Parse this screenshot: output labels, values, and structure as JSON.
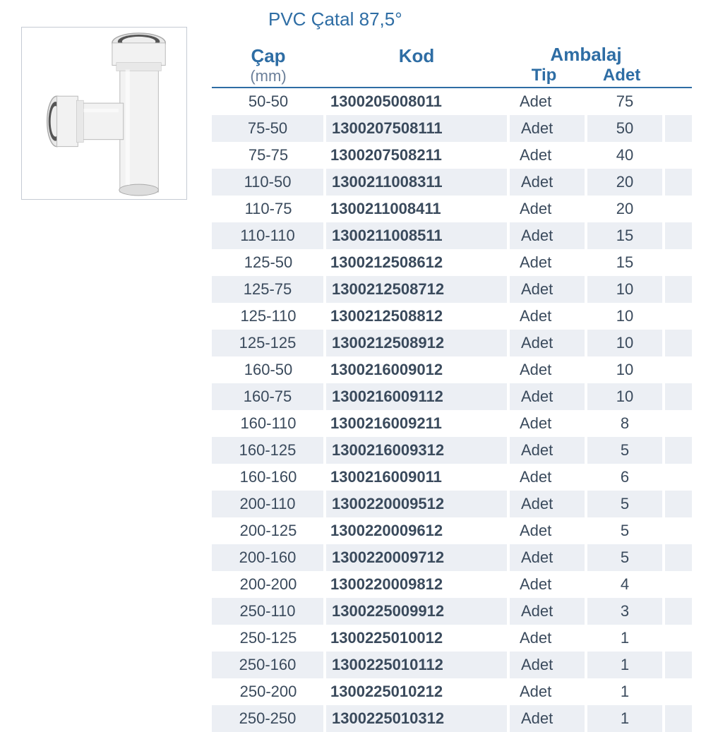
{
  "title": "PVC Çatal 87,5°",
  "headers": {
    "cap": "Çap",
    "cap_unit": "(mm)",
    "kod": "Kod",
    "ambalaj": "Ambalaj",
    "tip": "Tip",
    "adet": "Adet"
  },
  "colors": {
    "header_blue": "#2e6da4",
    "sub_gray": "#6b7f99",
    "text": "#3a4a5c",
    "row_alt": "#eceff4",
    "border_gray": "#c5cbd4"
  },
  "font_sizes": {
    "title": 26,
    "header_main": 26,
    "header_sub": 22,
    "cell": 22
  },
  "columns": [
    "cap",
    "kod",
    "tip",
    "adet"
  ],
  "column_widths": {
    "cap": 160,
    "kod": 260,
    "tip": 110,
    "adet": 110,
    "extra": 40
  },
  "rows": [
    {
      "cap": "50-50",
      "kod": "1300205008011",
      "tip": "Adet",
      "adet": "75"
    },
    {
      "cap": "75-50",
      "kod": "1300207508111",
      "tip": "Adet",
      "adet": "50"
    },
    {
      "cap": "75-75",
      "kod": "1300207508211",
      "tip": "Adet",
      "adet": "40"
    },
    {
      "cap": "110-50",
      "kod": "1300211008311",
      "tip": "Adet",
      "adet": "20"
    },
    {
      "cap": "110-75",
      "kod": "1300211008411",
      "tip": "Adet",
      "adet": "20"
    },
    {
      "cap": "110-110",
      "kod": "1300211008511",
      "tip": "Adet",
      "adet": "15"
    },
    {
      "cap": "125-50",
      "kod": "1300212508612",
      "tip": "Adet",
      "adet": "15"
    },
    {
      "cap": "125-75",
      "kod": "1300212508712",
      "tip": "Adet",
      "adet": "10"
    },
    {
      "cap": "125-110",
      "kod": "1300212508812",
      "tip": "Adet",
      "adet": "10"
    },
    {
      "cap": "125-125",
      "kod": "1300212508912",
      "tip": "Adet",
      "adet": "10"
    },
    {
      "cap": "160-50",
      "kod": "1300216009012",
      "tip": "Adet",
      "adet": "10"
    },
    {
      "cap": "160-75",
      "kod": "1300216009112",
      "tip": "Adet",
      "adet": "10"
    },
    {
      "cap": "160-110",
      "kod": "1300216009211",
      "tip": "Adet",
      "adet": "8"
    },
    {
      "cap": "160-125",
      "kod": "1300216009312",
      "tip": "Adet",
      "adet": "5"
    },
    {
      "cap": "160-160",
      "kod": "1300216009011",
      "tip": "Adet",
      "adet": "6"
    },
    {
      "cap": "200-110",
      "kod": "1300220009512",
      "tip": "Adet",
      "adet": "5"
    },
    {
      "cap": "200-125",
      "kod": "1300220009612",
      "tip": "Adet",
      "adet": "5"
    },
    {
      "cap": "200-160",
      "kod": "1300220009712",
      "tip": "Adet",
      "adet": "5"
    },
    {
      "cap": "200-200",
      "kod": "1300220009812",
      "tip": "Adet",
      "adet": "4"
    },
    {
      "cap": "250-110",
      "kod": "1300225009912",
      "tip": "Adet",
      "adet": "3"
    },
    {
      "cap": "250-125",
      "kod": "1300225010012",
      "tip": "Adet",
      "adet": "1"
    },
    {
      "cap": "250-160",
      "kod": "1300225010112",
      "tip": "Adet",
      "adet": "1"
    },
    {
      "cap": "250-200",
      "kod": "1300225010212",
      "tip": "Adet",
      "adet": "1"
    },
    {
      "cap": "250-250",
      "kod": "1300225010312",
      "tip": "Adet",
      "adet": "1"
    }
  ]
}
